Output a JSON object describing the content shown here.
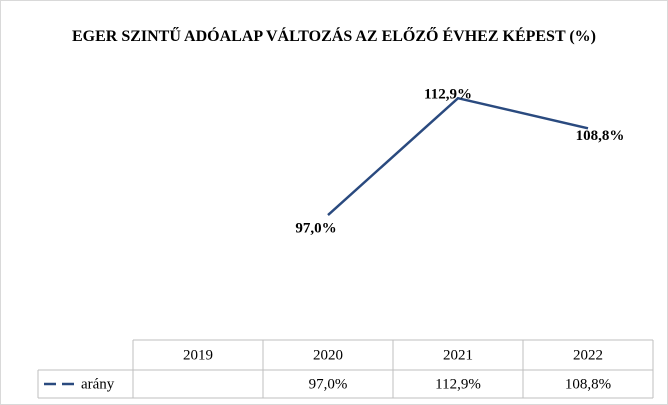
{
  "chart_data": {
    "type": "line",
    "title": "EGER SZINTŰ ADÓALAP  VÁLTOZÁS AZ ELŐZŐ ÉVHEZ KÉPEST (%)",
    "categories": [
      "2019",
      "2020",
      "2021",
      "2022"
    ],
    "series": [
      {
        "name": "arány",
        "color": "#2a4a7f",
        "values": [
          null,
          97.0,
          112.9,
          108.8
        ],
        "value_labels": [
          null,
          "97,0%",
          "112,9%",
          "108,8%"
        ]
      }
    ],
    "ylim": [
      80,
      120
    ],
    "data_table": true
  }
}
